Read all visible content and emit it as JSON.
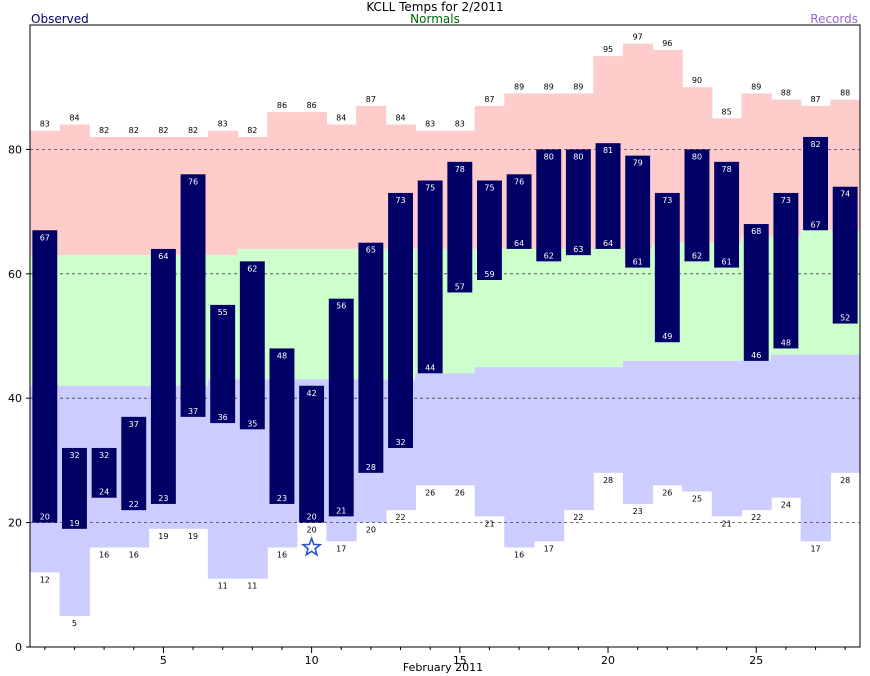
{
  "title": "KCLL Temps for 2/2011",
  "legend": {
    "observed": "Observed",
    "normals": "Normals",
    "records": "Records"
  },
  "colors": {
    "observed": "#000066",
    "normals": "#ccffcc",
    "records_high": "#ffcccc",
    "records_low": "#ccccff",
    "normals_text": "#006600",
    "records_text": "#9966cc",
    "star": "#2255cc"
  },
  "chart_data": {
    "type": "bar",
    "title": "KCLL Temps for 2/2011",
    "xlabel": "February 2011",
    "ylabel": "",
    "ylim": [
      0,
      100
    ],
    "xlim": [
      0.5,
      28.5
    ],
    "x_ticks": [
      5,
      10,
      15,
      20,
      25
    ],
    "y_ticks": [
      0,
      20,
      40,
      60,
      80
    ],
    "grid": "horizontal dashed at 20, 60, 80 and 40",
    "days": [
      1,
      2,
      3,
      4,
      5,
      6,
      7,
      8,
      9,
      10,
      11,
      12,
      13,
      14,
      15,
      16,
      17,
      18,
      19,
      20,
      21,
      22,
      23,
      24,
      25,
      26,
      27,
      28
    ],
    "observed_high": [
      67,
      32,
      32,
      37,
      64,
      76,
      55,
      62,
      48,
      42,
      56,
      65,
      73,
      75,
      78,
      75,
      76,
      80,
      80,
      81,
      79,
      73,
      80,
      78,
      68,
      73,
      82,
      74
    ],
    "observed_low": [
      20,
      19,
      24,
      22,
      23,
      37,
      36,
      35,
      23,
      20,
      21,
      28,
      32,
      44,
      57,
      59,
      64,
      62,
      63,
      64,
      61,
      49,
      62,
      61,
      46,
      48,
      67,
      52
    ],
    "record_high": [
      83,
      84,
      82,
      82,
      82,
      82,
      83,
      82,
      86,
      86,
      84,
      87,
      84,
      83,
      83,
      87,
      89,
      89,
      89,
      95,
      97,
      96,
      90,
      85,
      89,
      88,
      87,
      88
    ],
    "record_low": [
      12,
      5,
      16,
      16,
      19,
      19,
      11,
      11,
      16,
      20,
      17,
      20,
      22,
      26,
      26,
      21,
      16,
      17,
      22,
      28,
      23,
      26,
      25,
      21,
      22,
      24,
      17,
      28
    ],
    "normal_high": [
      63,
      63,
      63,
      63,
      63,
      63,
      63,
      64,
      64,
      64,
      64,
      64,
      64,
      64,
      64,
      64,
      64,
      64,
      64,
      64,
      64,
      65,
      65,
      65,
      66,
      66,
      67,
      67
    ],
    "normal_low": [
      42,
      42,
      42,
      42,
      42,
      42,
      43,
      43,
      43,
      43,
      43,
      43,
      43,
      44,
      44,
      45,
      45,
      45,
      45,
      45,
      46,
      46,
      46,
      46,
      46,
      47,
      47,
      47
    ],
    "markers": [
      {
        "type": "star",
        "day": 10,
        "value": 16
      }
    ]
  }
}
